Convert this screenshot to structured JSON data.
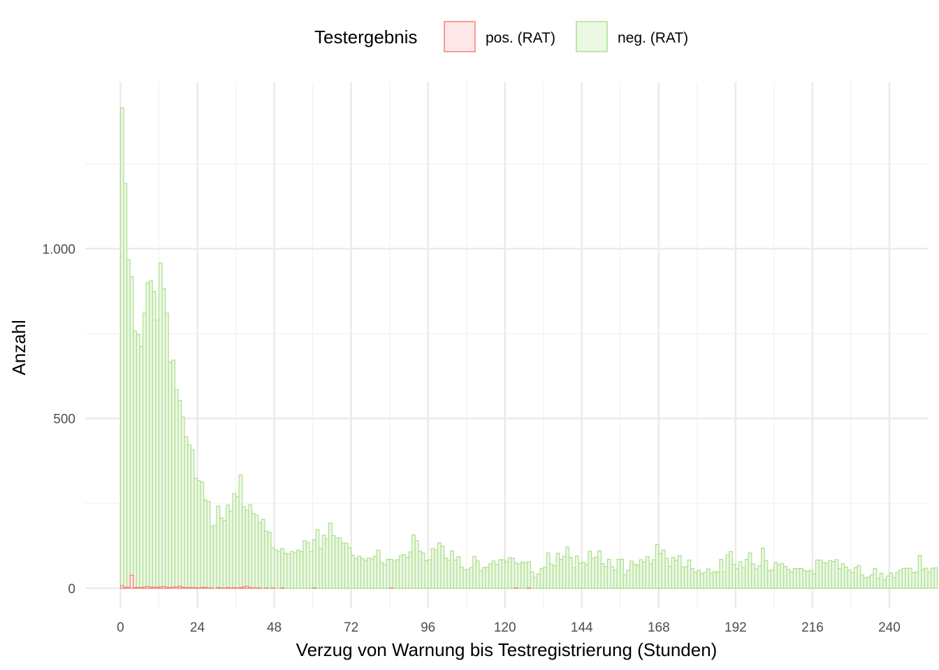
{
  "chart_data": {
    "type": "bar",
    "subtype": "histogram",
    "xlabel": "Verzug von Warnung bis Testregistrierung (Stunden)",
    "ylabel": "Anzahl",
    "x_ticks": [
      0,
      24,
      48,
      72,
      96,
      120,
      144,
      168,
      192,
      216,
      240
    ],
    "x_tick_labels": [
      "0",
      "24",
      "48",
      "72",
      "96",
      "120",
      "144",
      "168",
      "192",
      "216",
      "240"
    ],
    "y_ticks": [
      0,
      500,
      1000
    ],
    "y_tick_labels": [
      "0",
      "500",
      "1.000"
    ],
    "xlim": [
      -11,
      252
    ],
    "ylim": [
      -60,
      1490
    ],
    "bin_width": 1,
    "grid": true,
    "legend": {
      "title": "Testergebnis",
      "position": "top",
      "entries": [
        {
          "label": "pos. (RAT)",
          "fill": "#fde8e7",
          "stroke": "#f8766d"
        },
        {
          "label": "neg. (RAT)",
          "fill": "#ecf7e4",
          "stroke": "#a6de86"
        }
      ]
    },
    "series": [
      {
        "name": "neg. (RAT)",
        "color": "#a6de86",
        "fill": "#ecf7e4",
        "values": [
          1415,
          1192,
          968,
          918,
          758,
          748,
          712,
          810,
          900,
          905,
          874,
          790,
          958,
          882,
          810,
          666,
          672,
          585,
          553,
          504,
          446,
          422,
          408,
          324,
          317,
          313,
          260,
          255,
          182,
          186,
          242,
          207,
          200,
          245,
          227,
          279,
          270,
          334,
          240,
          230,
          246,
          220,
          215,
          193,
          203,
          168,
          165,
          119,
          113,
          108,
          117,
          103,
          101,
          108,
          104,
          112,
          108,
          140,
          135,
          108,
          143,
          173,
          117,
          156,
          145,
          192,
          155,
          148,
          148,
          133,
          133,
          119,
          97,
          87,
          94,
          87,
          82,
          89,
          86,
          94,
          112,
          76,
          70,
          85,
          85,
          80,
          84,
          96,
          99,
          91,
          107,
          157,
          140,
          109,
          104,
          81,
          84,
          117,
          112,
          134,
          124,
          89,
          82,
          110,
          83,
          93,
          62,
          55,
          55,
          61,
          94,
          80,
          51,
          61,
          62,
          72,
          80,
          70,
          84,
          84,
          78,
          90,
          88,
          74,
          71,
          77,
          75,
          78,
          48,
          32,
          42,
          58,
          62,
          104,
          71,
          66,
          103,
          85,
          94,
          121,
          91,
          60,
          95,
          73,
          76,
          70,
          109,
          88,
          92,
          110,
          72,
          64,
          85,
          63,
          53,
          85,
          86,
          40,
          53,
          80,
          71,
          68,
          84,
          77,
          93,
          72,
          84,
          128,
          102,
          112,
          88,
          64,
          91,
          82,
          96,
          63,
          63,
          83,
          58,
          47,
          53,
          43,
          47,
          57,
          44,
          49,
          48,
          85,
          48,
          98,
          108,
          70,
          57,
          78,
          60,
          85,
          104,
          71,
          57,
          66,
          118,
          82,
          52,
          54,
          76,
          69,
          73,
          64,
          56,
          48,
          58,
          58,
          58,
          52,
          50,
          53,
          42,
          83,
          83,
          76,
          74,
          81,
          79,
          84,
          58,
          72,
          62,
          53,
          46,
          61,
          67,
          39,
          30,
          33,
          39,
          58,
          29,
          44,
          25,
          36,
          45,
          32,
          47,
          53,
          58,
          59,
          59,
          46,
          48,
          97,
          56,
          59,
          47,
          59,
          60
        ]
      },
      {
        "name": "pos. (RAT)",
        "color": "#f8766d",
        "fill": "#fde8e7",
        "values": [
          8,
          3,
          3,
          38,
          2,
          3,
          2,
          4,
          5,
          3,
          3,
          3,
          4,
          5,
          3,
          2,
          4,
          4,
          6,
          3,
          2,
          2,
          2,
          2,
          1,
          2,
          3,
          1,
          1,
          0,
          2,
          1,
          1,
          2,
          1,
          2,
          1,
          2,
          4,
          6,
          2,
          1,
          1,
          1,
          0,
          1,
          0,
          1,
          0,
          0,
          1,
          0,
          0,
          0,
          0,
          0,
          0,
          0,
          0,
          0,
          1,
          0,
          0,
          0,
          0,
          0,
          0,
          0,
          0,
          0,
          0,
          0,
          0,
          0,
          0,
          0,
          0,
          0,
          0,
          0,
          0,
          0,
          0,
          0,
          1,
          0,
          0,
          0,
          0,
          0,
          0,
          0,
          0,
          0,
          0,
          0,
          0,
          0,
          0,
          0,
          0,
          0,
          0,
          0,
          0,
          0,
          0,
          0,
          0,
          0,
          0,
          0,
          0,
          0,
          0,
          0,
          0,
          0,
          0,
          0,
          0,
          0,
          0,
          1,
          0,
          0,
          0,
          1,
          0,
          0,
          0,
          0,
          0,
          0,
          0,
          0,
          0,
          0,
          0,
          0,
          0,
          0,
          0,
          0,
          0,
          0,
          0,
          0,
          0,
          0,
          0,
          0,
          0,
          0,
          0,
          0,
          0,
          0,
          0,
          0,
          0,
          0,
          0,
          0,
          0,
          0,
          0,
          0,
          0,
          0,
          0,
          0,
          0,
          0,
          0,
          0,
          0,
          0,
          0,
          0,
          0,
          0,
          0,
          0,
          0,
          0,
          0,
          0,
          0,
          0,
          0,
          0,
          0,
          0,
          0,
          0,
          0,
          0,
          0,
          0,
          0,
          0,
          0,
          0,
          0,
          0,
          0,
          0,
          0,
          0,
          0,
          0,
          0,
          0,
          0,
          0,
          0,
          0,
          0,
          0,
          0,
          0,
          0,
          0,
          0,
          0,
          0,
          0,
          0,
          0,
          0,
          0,
          0,
          0,
          0,
          0,
          0,
          0,
          0,
          0,
          0,
          0,
          0,
          0,
          0,
          0,
          0,
          0,
          0,
          0,
          0,
          0,
          0,
          0
        ]
      }
    ]
  }
}
